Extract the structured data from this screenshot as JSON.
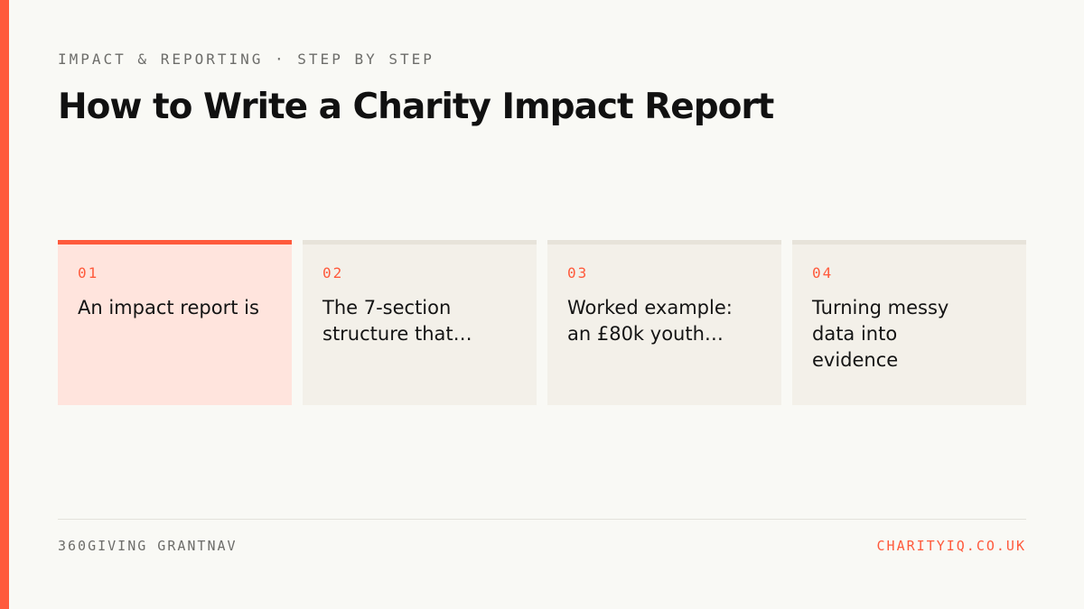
{
  "colors": {
    "accent": "#ff5a3c",
    "background": "#f9f9f5",
    "card_active_bg": "#ffe4dd",
    "card_bg": "#f3f0e9",
    "text_dark": "#111111",
    "text_muted": "#6d6d6a"
  },
  "header": {
    "eyebrow": "IMPACT & REPORTING · STEP BY STEP",
    "title": "How to Write a Charity Impact Report"
  },
  "cards": [
    {
      "number": "01",
      "text": "An impact report is",
      "active": true
    },
    {
      "number": "02",
      "text": "The 7-section structure that…",
      "active": false
    },
    {
      "number": "03",
      "text": "Worked example: an £80k youth…",
      "active": false
    },
    {
      "number": "04",
      "text": "Turning messy data into evidence",
      "active": false
    }
  ],
  "footer": {
    "source": "360GIVING GRANTNAV",
    "site": "CHARITYIQ.CO.UK"
  }
}
